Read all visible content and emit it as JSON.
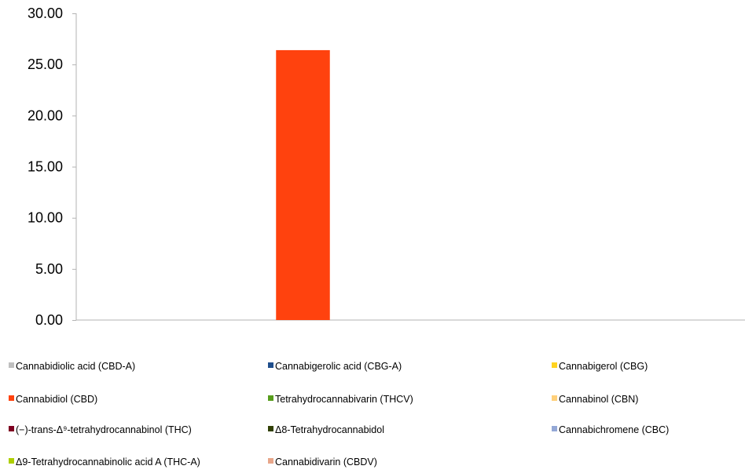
{
  "chart_data": {
    "type": "bar",
    "title": "",
    "xlabel": "",
    "ylabel": "",
    "ylim": [
      0,
      30
    ],
    "y_ticks": [
      "0.00",
      "5.00",
      "10.00",
      "15.00",
      "20.00",
      "25.00",
      "30.00"
    ],
    "y_tick_values": [
      0,
      5,
      10,
      15,
      20,
      25,
      30
    ],
    "grid": false,
    "legend_position": "bottom",
    "series": [
      {
        "name": "Cannabidiolic acid (CBD-A)",
        "color": "#bfbfbf",
        "value": 0
      },
      {
        "name": "Cannabigerolic acid (CBG-A)",
        "color": "#1f4e8c",
        "value": 0
      },
      {
        "name": "Cannabigerol (CBG)",
        "color": "#ffd320",
        "value": 0
      },
      {
        "name": "Cannabidiol (CBD)",
        "color": "#ff420e",
        "value": 26.4
      },
      {
        "name": "Tetrahydrocannabivarin (THCV)",
        "color": "#579d1c",
        "value": 0
      },
      {
        "name": "Cannabinol (CBN)",
        "color": "#ffd07a",
        "value": 0
      },
      {
        "name": "(−)-trans-Δ⁹-tetrahydrocannabinol (THC)",
        "color": "#7e0021",
        "value": 0
      },
      {
        "name": "Δ8-Tetrahydrocannabidol",
        "color": "#314004",
        "value": 0
      },
      {
        "name": "Cannabichromene (CBC)",
        "color": "#94a8d6",
        "value": 0
      },
      {
        "name": "Δ9-Tetrahydrocannabinolic acid A (THC-A)",
        "color": "#aecf00",
        "value": 0
      },
      {
        "name": "Cannabidivarin (CBDV)",
        "color": "#e8a68a",
        "value": 0
      }
    ]
  }
}
